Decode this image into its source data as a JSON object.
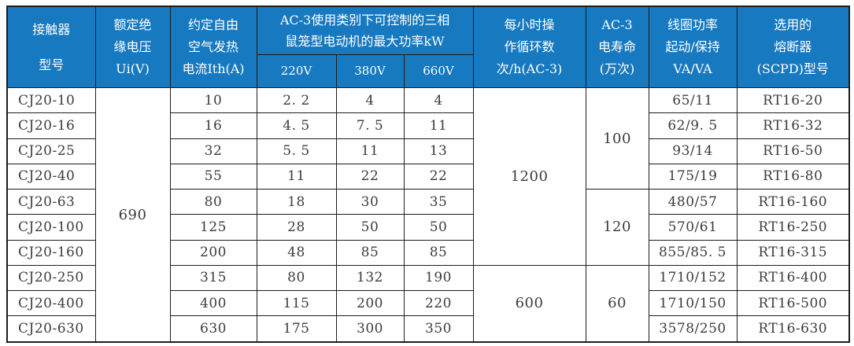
{
  "colors": {
    "header_bg": "#1779c0",
    "header_text": "#ffffff",
    "body_text": "#3c3c3c",
    "border": "#1c1c1c",
    "page_bg": "#ffffff"
  },
  "table": {
    "header": {
      "model": [
        "接触器",
        "型号"
      ],
      "insulation": [
        "额定绝",
        "缘电压",
        "Ui(V)"
      ],
      "thermal_current": [
        "约定自由",
        "空气发热",
        "电流Ith(A)"
      ],
      "max_power_group": [
        "AC-3使用类别下可控制的三相",
        "鼠笼型电动机的最大功率kW"
      ],
      "voltage_subcols": [
        "220V",
        "380V",
        "660V"
      ],
      "cycles": [
        "每小时操",
        "作循环数",
        "次/h(AC-3)"
      ],
      "electrical_life": [
        "AC-3",
        "电寿命",
        "(万次)"
      ],
      "coil_power": [
        "线圈功率",
        "起动/保持",
        "VA/VA"
      ],
      "fuse": [
        "选用的",
        "熔断器",
        "(SCPD)型号"
      ]
    },
    "merged": {
      "insulation_voltage": "690",
      "cycles": [
        {
          "value": "1200",
          "start": 0,
          "span": 7
        },
        {
          "value": "600",
          "start": 7,
          "span": 3
        }
      ],
      "electrical_life": [
        {
          "value": "100",
          "start": 0,
          "span": 4
        },
        {
          "value": "120",
          "start": 4,
          "span": 3
        },
        {
          "value": "60",
          "start": 7,
          "span": 3
        }
      ]
    },
    "rows": [
      {
        "model": "CJ20-10",
        "ith": "10",
        "kw220": "2. 2",
        "kw380": "4",
        "kw660": "4",
        "coil": "65/11",
        "fuse": "RT16-20"
      },
      {
        "model": "CJ20-16",
        "ith": "16",
        "kw220": "4. 5",
        "kw380": "7. 5",
        "kw660": "11",
        "coil": "62/9. 5",
        "fuse": "RT16-32"
      },
      {
        "model": "CJ20-25",
        "ith": "32",
        "kw220": "5. 5",
        "kw380": "11",
        "kw660": "13",
        "coil": "93/14",
        "fuse": "RT16-50"
      },
      {
        "model": "CJ20-40",
        "ith": "55",
        "kw220": "11",
        "kw380": "22",
        "kw660": "22",
        "coil": "175/19",
        "fuse": "RT16-80"
      },
      {
        "model": "CJ20-63",
        "ith": "80",
        "kw220": "18",
        "kw380": "30",
        "kw660": "35",
        "coil": "480/57",
        "fuse": "RT16-160"
      },
      {
        "model": "CJ20-100",
        "ith": "125",
        "kw220": "28",
        "kw380": "50",
        "kw660": "50",
        "coil": "570/61",
        "fuse": "RT16-250"
      },
      {
        "model": "CJ20-160",
        "ith": "200",
        "kw220": "48",
        "kw380": "85",
        "kw660": "85",
        "coil": "855/85. 5",
        "fuse": "RT16-315"
      },
      {
        "model": "CJ20-250",
        "ith": "315",
        "kw220": "80",
        "kw380": "132",
        "kw660": "190",
        "coil": "1710/152",
        "fuse": "RT16-400"
      },
      {
        "model": "CJ20-400",
        "ith": "400",
        "kw220": "115",
        "kw380": "200",
        "kw660": "220",
        "coil": "1710/150",
        "fuse": "RT16-500"
      },
      {
        "model": "CJ20-630",
        "ith": "630",
        "kw220": "175",
        "kw380": "300",
        "kw660": "350",
        "coil": "3578/250",
        "fuse": "RT16-630"
      }
    ]
  }
}
